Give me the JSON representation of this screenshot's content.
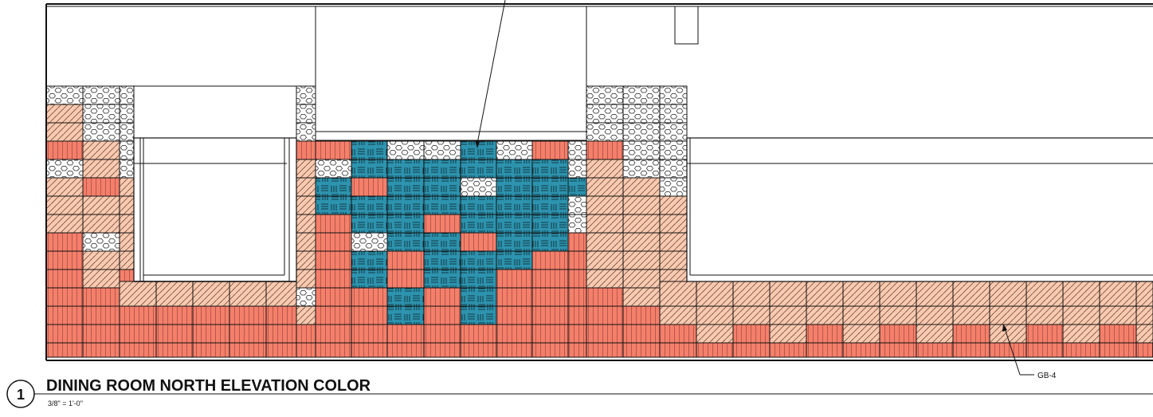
{
  "title": "DINING ROOM NORTH ELEVATION COLOR",
  "scale": "3/8\" = 1'-0\"",
  "detail_number": "1",
  "callout_label": "GB-4",
  "colors": {
    "salmon": "#F47F6B",
    "peach": "#F9C9B0",
    "teal": "#2D93AE",
    "white": "#FFFFFF",
    "line": "#111111"
  },
  "patterns": [
    "salmon-vertical-hatch",
    "peach-diagonal-hatch",
    "teal-basketweave",
    "white-hexagon"
  ]
}
